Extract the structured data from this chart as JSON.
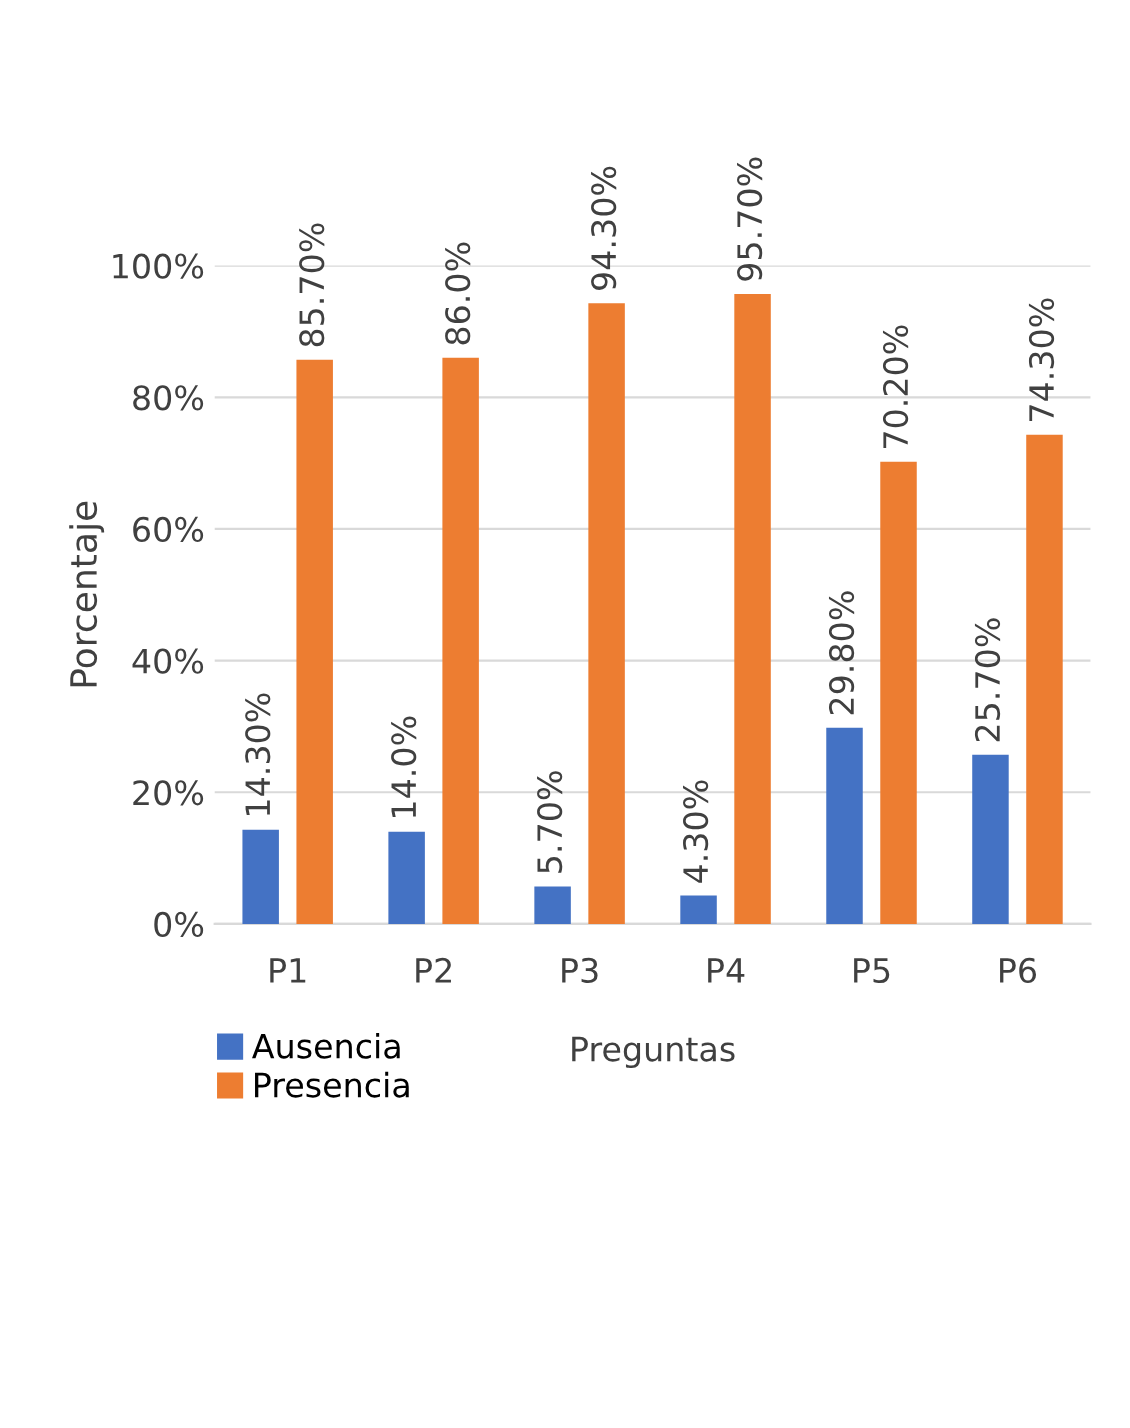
{
  "chart_data": {
    "type": "bar",
    "xlabel": "Preguntas",
    "ylabel": "Porcentaje",
    "categories": [
      "P1",
      "P2",
      "P3",
      "P4",
      "P5",
      "P6"
    ],
    "series": [
      {
        "name": "Ausencia",
        "color": "#4472c4",
        "values": [
          14.3,
          14.0,
          5.7,
          4.3,
          29.8,
          25.7
        ],
        "value_labels": [
          "14.30%",
          "14.0%",
          "5.70%",
          "4.30%",
          "29.80%",
          "25.70%"
        ]
      },
      {
        "name": "Presencia",
        "color": "#ed7d31",
        "values": [
          85.7,
          86.0,
          94.3,
          95.7,
          70.2,
          74.3
        ],
        "value_labels": [
          "85.70%",
          "86.0%",
          "94.30%",
          "95.70%",
          "70.20%",
          "74.30%"
        ]
      }
    ],
    "ylim": [
      0,
      100
    ],
    "yticks": [
      {
        "value": 0,
        "label": "0%"
      },
      {
        "value": 20,
        "label": "20%"
      },
      {
        "value": 40,
        "label": "40%"
      },
      {
        "value": 60,
        "label": "60%"
      },
      {
        "value": 80,
        "label": "80%"
      },
      {
        "value": 100,
        "label": "100%"
      }
    ],
    "grid": "y",
    "legend": "bottom left"
  }
}
